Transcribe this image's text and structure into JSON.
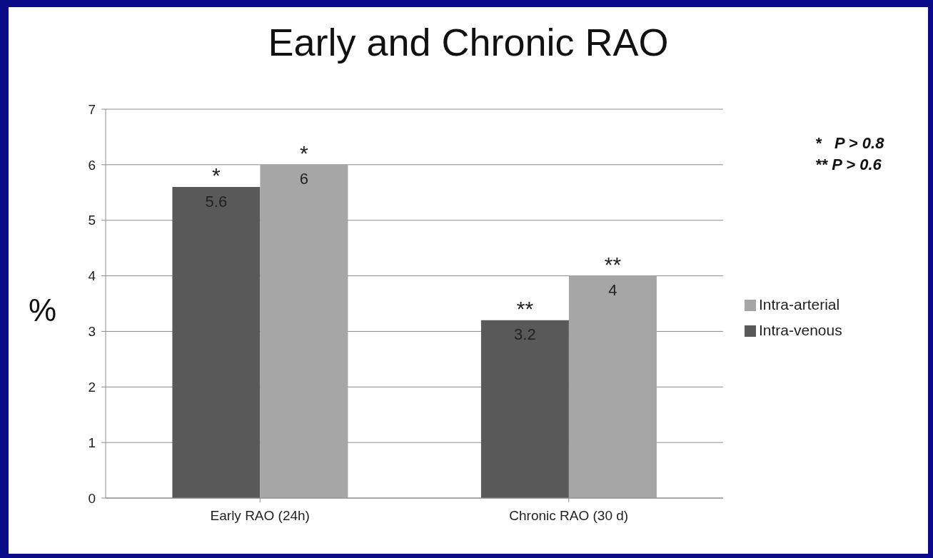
{
  "chart_data": {
    "type": "bar",
    "title": "Early and Chronic RAO",
    "ylabel": "%",
    "categories": [
      "Early RAO (24h)",
      "Chronic RAO (30 d)"
    ],
    "series": [
      {
        "name": "Intra-venous",
        "color": "#595959",
        "values": [
          5.6,
          3.2
        ]
      },
      {
        "name": "Intra-arterial",
        "color": "#a6a6a6",
        "values": [
          6,
          4
        ]
      }
    ],
    "ylim": [
      0,
      7
    ],
    "yticks": [
      0,
      1,
      2,
      3,
      4,
      5,
      6,
      7
    ],
    "grid": "y",
    "legend": "right",
    "data_labels": true,
    "annotations": [
      {
        "text": "*",
        "x": "Early RAO (24h)",
        "y": 5.6
      },
      {
        "text": "*",
        "x": "Early RAO (24h)",
        "y": 6
      },
      {
        "text": "**",
        "x": "Chronic RAO (30 d)",
        "y": 3.2
      },
      {
        "text": "**",
        "x": "Chronic RAO (30 d)",
        "y": 4
      },
      "*   P > 0.8",
      "** P > 0.6"
    ]
  }
}
